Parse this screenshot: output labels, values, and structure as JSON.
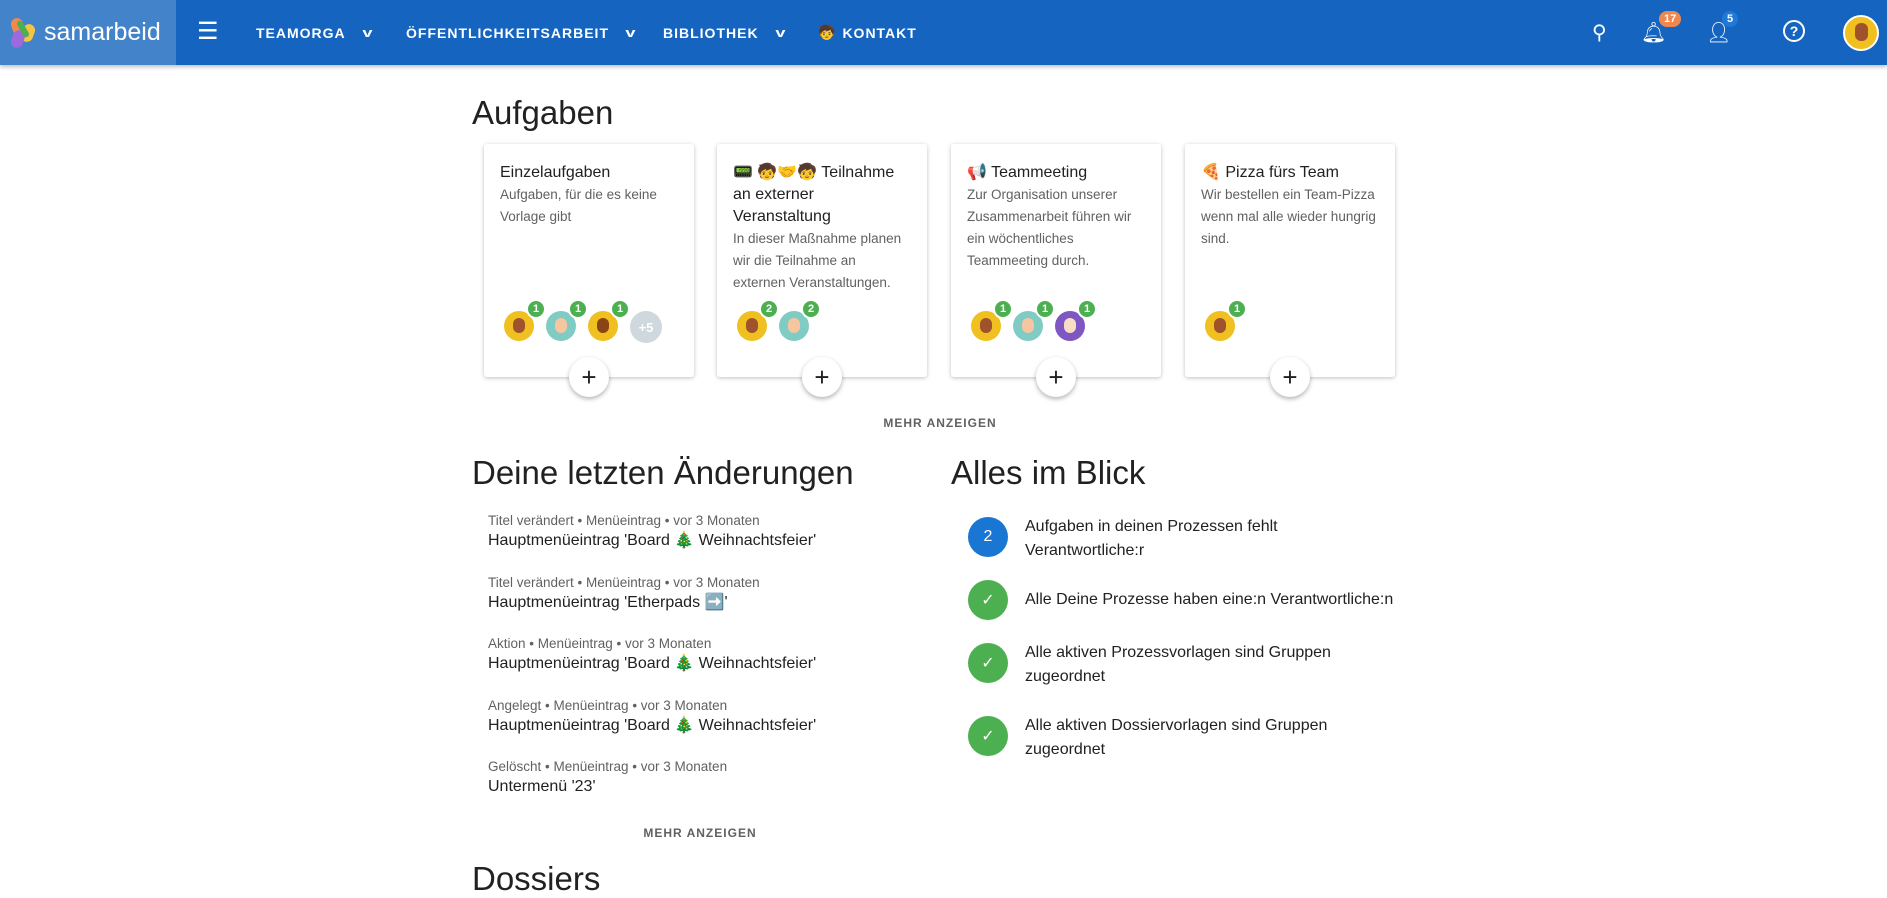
{
  "topbar": {
    "brand": "samarbeid",
    "nav": [
      {
        "label": "TEAMORGA"
      },
      {
        "label": "ÖFFENTLICHKEITSARBEIT"
      },
      {
        "label": "BIBLIOTHEK"
      },
      {
        "label": "KONTAKT",
        "emoji": "🧒"
      }
    ],
    "notifications": "17",
    "users": "5",
    "color": "#1565c0"
  },
  "aufgaben": {
    "title": "Aufgaben",
    "more": "MEHR ANZEIGEN",
    "cards": [
      {
        "title": "Einzelaufgaben",
        "desc": "Aufgaben, für die es keine Vorlage gibt",
        "avatars": [
          "1",
          "1",
          "1"
        ],
        "extra": "+5"
      },
      {
        "title": "📟 🧒🤝🧒 Teilnahme an externer Veranstaltung",
        "desc": "In dieser Maßnahme planen wir die Teilnahme an externen Veranstaltungen.",
        "avatars": [
          "2",
          "2"
        ]
      },
      {
        "title": "📢 Teammeeting",
        "desc": "Zur Organisation unserer Zusammenarbeit führen wir ein wöchentliches Teammeeting durch.",
        "avatars": [
          "1",
          "1",
          "1"
        ]
      },
      {
        "title": "🍕 Pizza fürs Team",
        "desc": "Wir bestellen ein Team-Pizza wenn mal alle wieder hungrig sind.",
        "avatars": [
          "1"
        ]
      }
    ]
  },
  "changes": {
    "title": "Deine letzten Änderungen",
    "more": "MEHR ANZEIGEN",
    "items": [
      {
        "meta": "Titel verändert • Menüeintrag • vor 3 Monaten",
        "title": "Hauptmenüeintrag 'Board 🎄 Weihnachtsfeier'"
      },
      {
        "meta": "Titel verändert • Menüeintrag • vor 3 Monaten",
        "title": "Hauptmenüeintrag 'Etherpads ➡️'"
      },
      {
        "meta": "Aktion • Menüeintrag • vor 3 Monaten",
        "title": "Hauptmenüeintrag 'Board 🎄 Weihnachtsfeier'"
      },
      {
        "meta": "Angelegt • Menüeintrag • vor 3 Monaten",
        "title": "Hauptmenüeintrag 'Board 🎄 Weihnachtsfeier'"
      },
      {
        "meta": "Gelöscht • Menüeintrag • vor 3 Monaten",
        "title": "Untermenü '23'"
      }
    ]
  },
  "blick": {
    "title": "Alles im Blick",
    "items": [
      {
        "badge": "2",
        "text": "Aufgaben in deinen Prozessen fehlt Verantwortliche:r",
        "color": "#1976d2"
      },
      {
        "badge": "✓",
        "text": "Alle Deine Prozesse haben eine:n Verantwortliche:n",
        "color": "#4caf50"
      },
      {
        "badge": "✓",
        "text": "Alle aktiven Prozessvorlagen sind Gruppen zugeordnet",
        "color": "#4caf50"
      },
      {
        "badge": "✓",
        "text": "Alle aktiven Dossiervorlagen sind Gruppen zugeordnet",
        "color": "#4caf50"
      }
    ]
  },
  "dossiers": {
    "title": "Dossiers"
  }
}
